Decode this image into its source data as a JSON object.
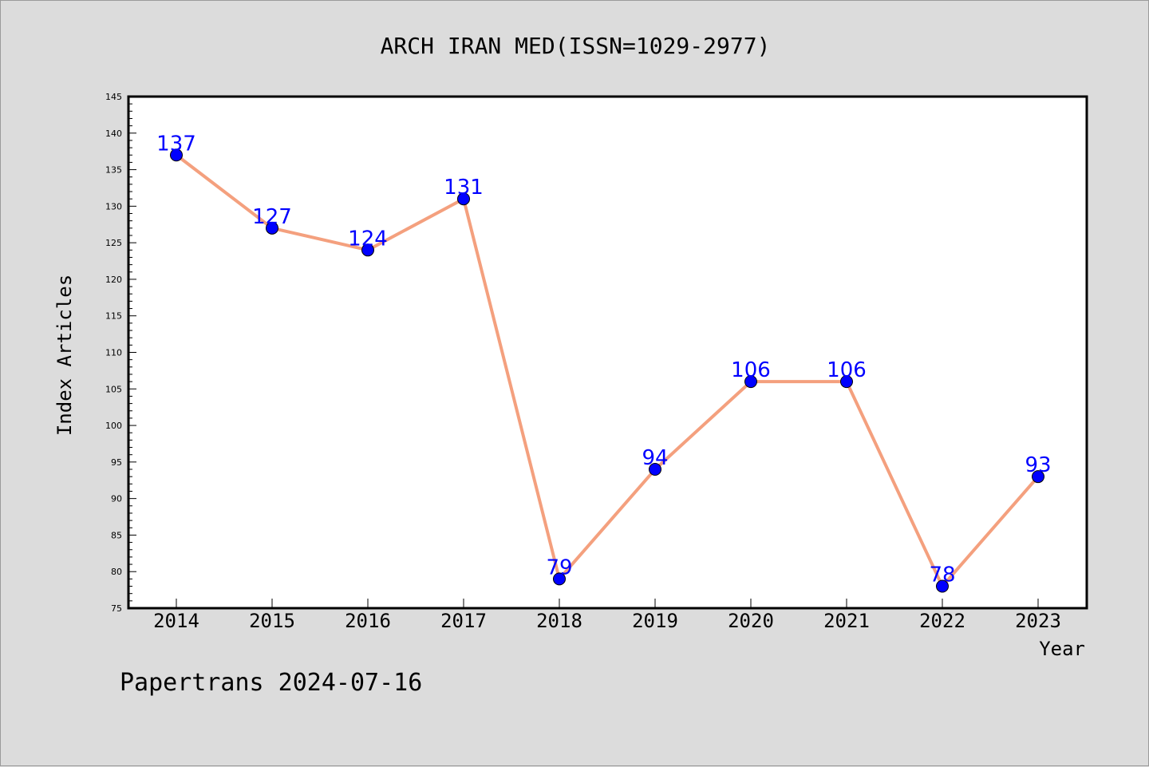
{
  "chart_data": {
    "type": "line",
    "title": "ARCH IRAN MED(ISSN=1029-2977)",
    "xlabel": "Year",
    "ylabel": "Index Articles",
    "categories": [
      "2014",
      "2015",
      "2016",
      "2017",
      "2018",
      "2019",
      "2020",
      "2021",
      "2022",
      "2023"
    ],
    "values": [
      137,
      127,
      124,
      131,
      79,
      94,
      106,
      106,
      78,
      93
    ],
    "ylim": [
      75,
      145
    ],
    "yticks": [
      75,
      80,
      85,
      90,
      95,
      100,
      105,
      110,
      115,
      120,
      125,
      130,
      135,
      140,
      145
    ],
    "grid": false,
    "line_color": "#f4a07e",
    "marker_color": "#0000ff",
    "label_color": "#0000ff"
  },
  "footer": {
    "caption": "Papertrans 2024-07-16"
  }
}
